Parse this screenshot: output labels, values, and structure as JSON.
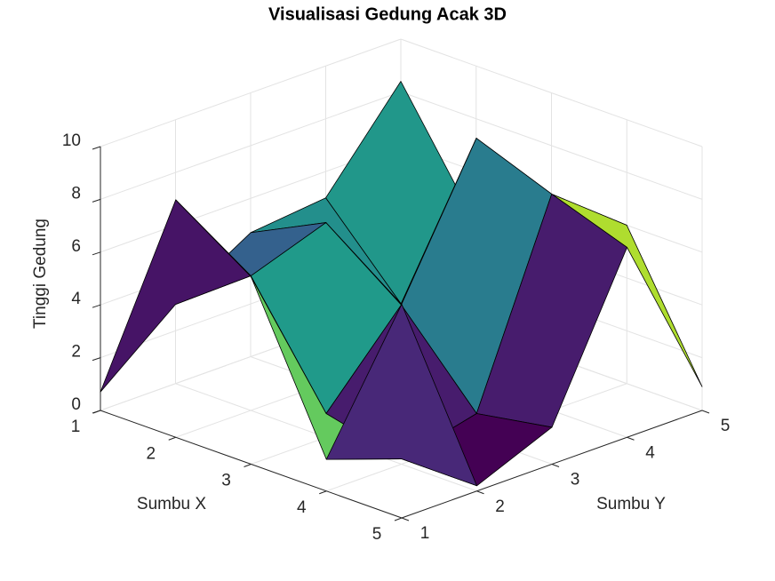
{
  "chart_data": {
    "type": "surface3d",
    "title": "Visualisasi Gedung Acak 3D",
    "xlabel": "Sumbu X",
    "ylabel": "Sumbu Y",
    "zlabel": "Tinggi Gedung",
    "x": [
      1,
      2,
      3,
      4,
      5
    ],
    "y": [
      1,
      2,
      3,
      4,
      5
    ],
    "z": [
      [
        0.7,
        3.0,
        4.7,
        5.0,
        8.4
      ],
      [
        9.0,
        5.1,
        6.1,
        2.0,
        4.0
      ],
      [
        7.1,
        0.9,
        4.0,
        9.3,
        3.0
      ],
      [
        1.2,
        0.2,
        0.9,
        8.2,
        6.0
      ],
      [
        8.1,
        0.2,
        1.4,
        7.2,
        0.9
      ]
    ],
    "colormap": "viridis",
    "xlim": [
      1,
      5
    ],
    "ylim": [
      1,
      5
    ],
    "zlim": [
      0,
      10
    ],
    "xticks": [
      1,
      2,
      3,
      4,
      5
    ],
    "yticks": [
      1,
      2,
      3,
      4,
      5
    ],
    "zticks": [
      0,
      2,
      4,
      6,
      8,
      10
    ],
    "grid": true
  }
}
